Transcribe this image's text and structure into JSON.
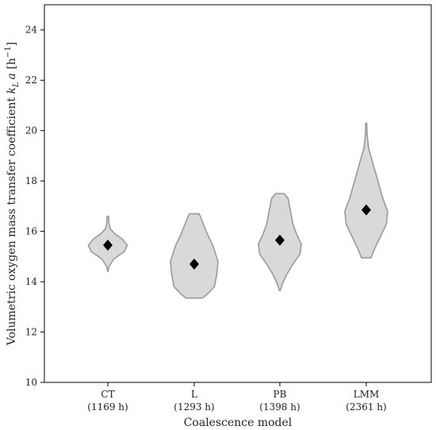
{
  "chart_data": {
    "type": "violin",
    "title": "",
    "xlabel": "Coalescence model",
    "ylabel_text": "Volumetric oxygen mass transfer coefficient ",
    "ylabel_symbol": "k",
    "ylabel_subscript": "L",
    "ylabel_symbol2": "a",
    "ylabel_unit": " [h",
    "ylabel_unit_exp": "−1",
    "ylabel_unit_close": "]",
    "ylim": [
      10,
      25
    ],
    "yticks": [
      10,
      12,
      14,
      16,
      18,
      20,
      22,
      24
    ],
    "grid": false,
    "categories": [
      {
        "name": "CT",
        "duration": "(1169 h)",
        "marker": 15.45,
        "profile": [
          [
            14.4,
            0.0
          ],
          [
            14.6,
            0.05
          ],
          [
            14.9,
            0.25
          ],
          [
            15.2,
            0.7
          ],
          [
            15.45,
            0.82
          ],
          [
            15.7,
            0.6
          ],
          [
            15.9,
            0.3
          ],
          [
            16.1,
            0.1
          ],
          [
            16.3,
            0.05
          ],
          [
            16.6,
            0.03
          ]
        ]
      },
      {
        "name": "L",
        "duration": "(1293 h)",
        "marker": 14.7,
        "profile": [
          [
            13.35,
            0.35
          ],
          [
            13.5,
            0.55
          ],
          [
            13.8,
            0.85
          ],
          [
            14.3,
            0.95
          ],
          [
            14.8,
            1.0
          ],
          [
            15.4,
            0.8
          ],
          [
            15.9,
            0.55
          ],
          [
            16.3,
            0.38
          ],
          [
            16.55,
            0.28
          ],
          [
            16.7,
            0.2
          ]
        ]
      },
      {
        "name": "PB",
        "duration": "(1398 h)",
        "marker": 15.65,
        "profile": [
          [
            13.65,
            0.02
          ],
          [
            13.9,
            0.1
          ],
          [
            14.3,
            0.3
          ],
          [
            14.7,
            0.55
          ],
          [
            15.1,
            0.85
          ],
          [
            15.5,
            0.9
          ],
          [
            15.9,
            0.7
          ],
          [
            16.3,
            0.55
          ],
          [
            16.8,
            0.45
          ],
          [
            17.3,
            0.35
          ],
          [
            17.5,
            0.18
          ]
        ]
      },
      {
        "name": "LMM",
        "duration": "(2361 h)",
        "marker": 16.85,
        "profile": [
          [
            14.95,
            0.2
          ],
          [
            15.3,
            0.35
          ],
          [
            15.8,
            0.6
          ],
          [
            16.3,
            0.85
          ],
          [
            16.8,
            0.9
          ],
          [
            17.3,
            0.7
          ],
          [
            17.8,
            0.55
          ],
          [
            18.3,
            0.4
          ],
          [
            18.8,
            0.25
          ],
          [
            19.3,
            0.1
          ],
          [
            19.8,
            0.04
          ],
          [
            20.3,
            0.02
          ]
        ]
      }
    ]
  }
}
